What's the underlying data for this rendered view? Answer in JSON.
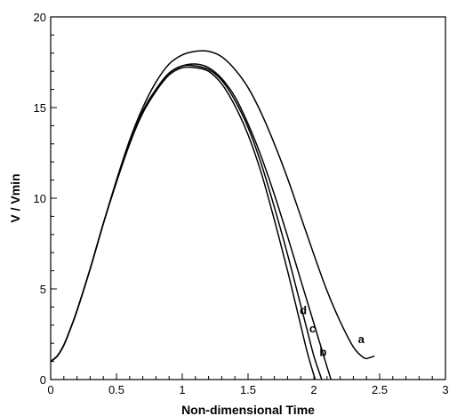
{
  "chart_data": {
    "type": "line",
    "xlabel": "Non-dimensional Time",
    "ylabel": "V / Vmin",
    "xlim": [
      0,
      3
    ],
    "ylim": [
      0,
      20
    ],
    "xticks": [
      "0",
      "0.5",
      "1",
      "1.5",
      "2",
      "2.5",
      "3"
    ],
    "yticks": [
      "0",
      "5",
      "10",
      "15",
      "20"
    ],
    "grid": false,
    "series": [
      {
        "name": "a",
        "label_at": [
          2.36,
          2.0
        ],
        "x": [
          0,
          0.05,
          0.1,
          0.15,
          0.2,
          0.3,
          0.4,
          0.5,
          0.6,
          0.7,
          0.8,
          0.9,
          1.0,
          1.1,
          1.2,
          1.3,
          1.4,
          1.5,
          1.6,
          1.7,
          1.8,
          1.9,
          2.0,
          2.1,
          2.2,
          2.3,
          2.38,
          2.42,
          2.46
        ],
        "y": [
          1.0,
          1.3,
          1.9,
          2.8,
          3.8,
          6.1,
          8.6,
          11.0,
          13.2,
          15.0,
          16.4,
          17.4,
          17.9,
          18.1,
          18.1,
          17.8,
          17.1,
          16.1,
          14.7,
          13.0,
          11.1,
          9.0,
          6.9,
          4.9,
          3.2,
          1.8,
          1.2,
          1.2,
          1.3
        ]
      },
      {
        "name": "b",
        "label_at": [
          2.07,
          1.3
        ],
        "x": [
          0,
          0.05,
          0.1,
          0.15,
          0.2,
          0.3,
          0.4,
          0.5,
          0.6,
          0.7,
          0.8,
          0.9,
          1.0,
          1.1,
          1.2,
          1.3,
          1.4,
          1.5,
          1.6,
          1.7,
          1.8,
          1.9,
          2.0,
          2.05,
          2.1,
          2.13
        ],
        "y": [
          1.0,
          1.3,
          1.9,
          2.8,
          3.8,
          6.1,
          8.6,
          10.9,
          13.0,
          14.8,
          16.0,
          16.9,
          17.3,
          17.4,
          17.2,
          16.6,
          15.6,
          14.1,
          12.3,
          10.2,
          7.9,
          5.5,
          3.1,
          1.9,
          0.7,
          0.0
        ]
      },
      {
        "name": "c",
        "label_at": [
          1.99,
          2.6
        ],
        "x": [
          0,
          0.05,
          0.1,
          0.15,
          0.2,
          0.3,
          0.4,
          0.5,
          0.6,
          0.7,
          0.8,
          0.9,
          1.0,
          1.1,
          1.2,
          1.3,
          1.4,
          1.5,
          1.6,
          1.7,
          1.8,
          1.9,
          1.95,
          2.0,
          2.06
        ],
        "y": [
          1.0,
          1.3,
          1.9,
          2.8,
          3.8,
          6.1,
          8.6,
          10.9,
          13.0,
          14.8,
          16.0,
          16.9,
          17.3,
          17.3,
          17.1,
          16.5,
          15.4,
          13.9,
          11.9,
          9.5,
          6.9,
          4.1,
          2.7,
          1.3,
          0.0
        ]
      },
      {
        "name": "d",
        "label_at": [
          1.92,
          3.6
        ],
        "x": [
          0,
          0.05,
          0.1,
          0.15,
          0.2,
          0.3,
          0.4,
          0.5,
          0.6,
          0.7,
          0.8,
          0.9,
          1.0,
          1.1,
          1.2,
          1.3,
          1.4,
          1.5,
          1.6,
          1.7,
          1.8,
          1.85,
          1.9,
          1.95,
          2.01
        ],
        "y": [
          1.0,
          1.3,
          1.9,
          2.8,
          3.8,
          6.1,
          8.6,
          10.9,
          13.0,
          14.7,
          15.9,
          16.8,
          17.2,
          17.2,
          17.0,
          16.3,
          15.1,
          13.5,
          11.4,
          8.8,
          6.0,
          4.5,
          3.0,
          1.5,
          0.0
        ]
      }
    ]
  }
}
